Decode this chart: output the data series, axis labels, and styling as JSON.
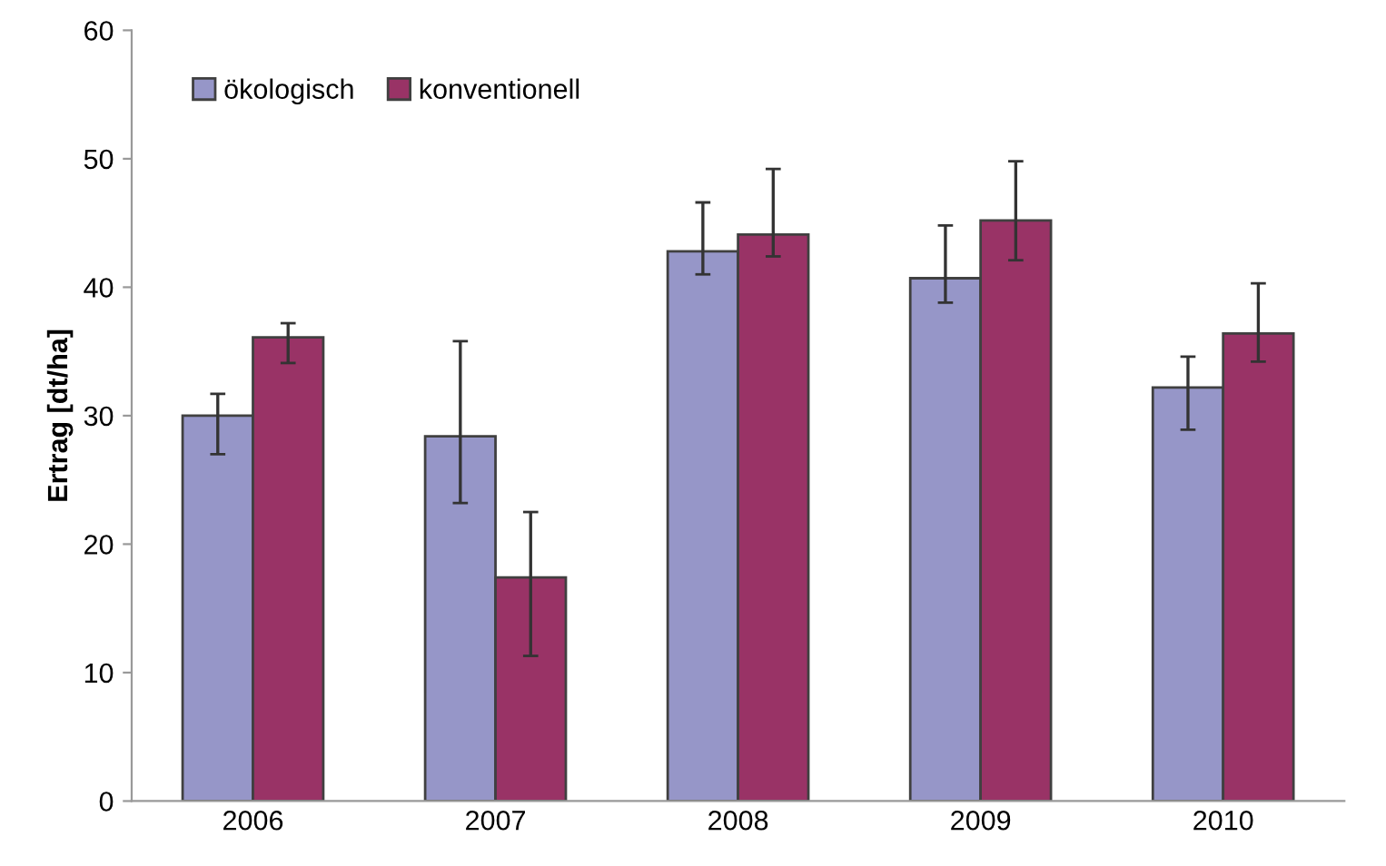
{
  "chart_data": {
    "type": "bar",
    "ylabel": "Ertrag [dt/ha]",
    "categories": [
      "2006",
      "2007",
      "2008",
      "2009",
      "2010"
    ],
    "series": [
      {
        "name": "ökologisch",
        "color": "#9696c8",
        "values": [
          30.0,
          28.4,
          42.8,
          40.7,
          32.2
        ],
        "errors": [
          [
            27.0,
            31.7
          ],
          [
            23.2,
            35.8
          ],
          [
            41.0,
            46.6
          ],
          [
            38.8,
            44.8
          ],
          [
            28.9,
            34.6
          ]
        ]
      },
      {
        "name": "konventionell",
        "color": "#993366",
        "values": [
          36.1,
          17.4,
          44.1,
          45.2,
          36.4
        ],
        "errors": [
          [
            34.1,
            37.2
          ],
          [
            11.3,
            22.5
          ],
          [
            42.4,
            49.2
          ],
          [
            42.1,
            49.8
          ],
          [
            34.2,
            40.3
          ]
        ]
      }
    ],
    "ylim": [
      0,
      60
    ],
    "yticks": [
      0,
      10,
      20,
      30,
      40,
      50,
      60
    ],
    "grid": false,
    "legend": "top left"
  }
}
